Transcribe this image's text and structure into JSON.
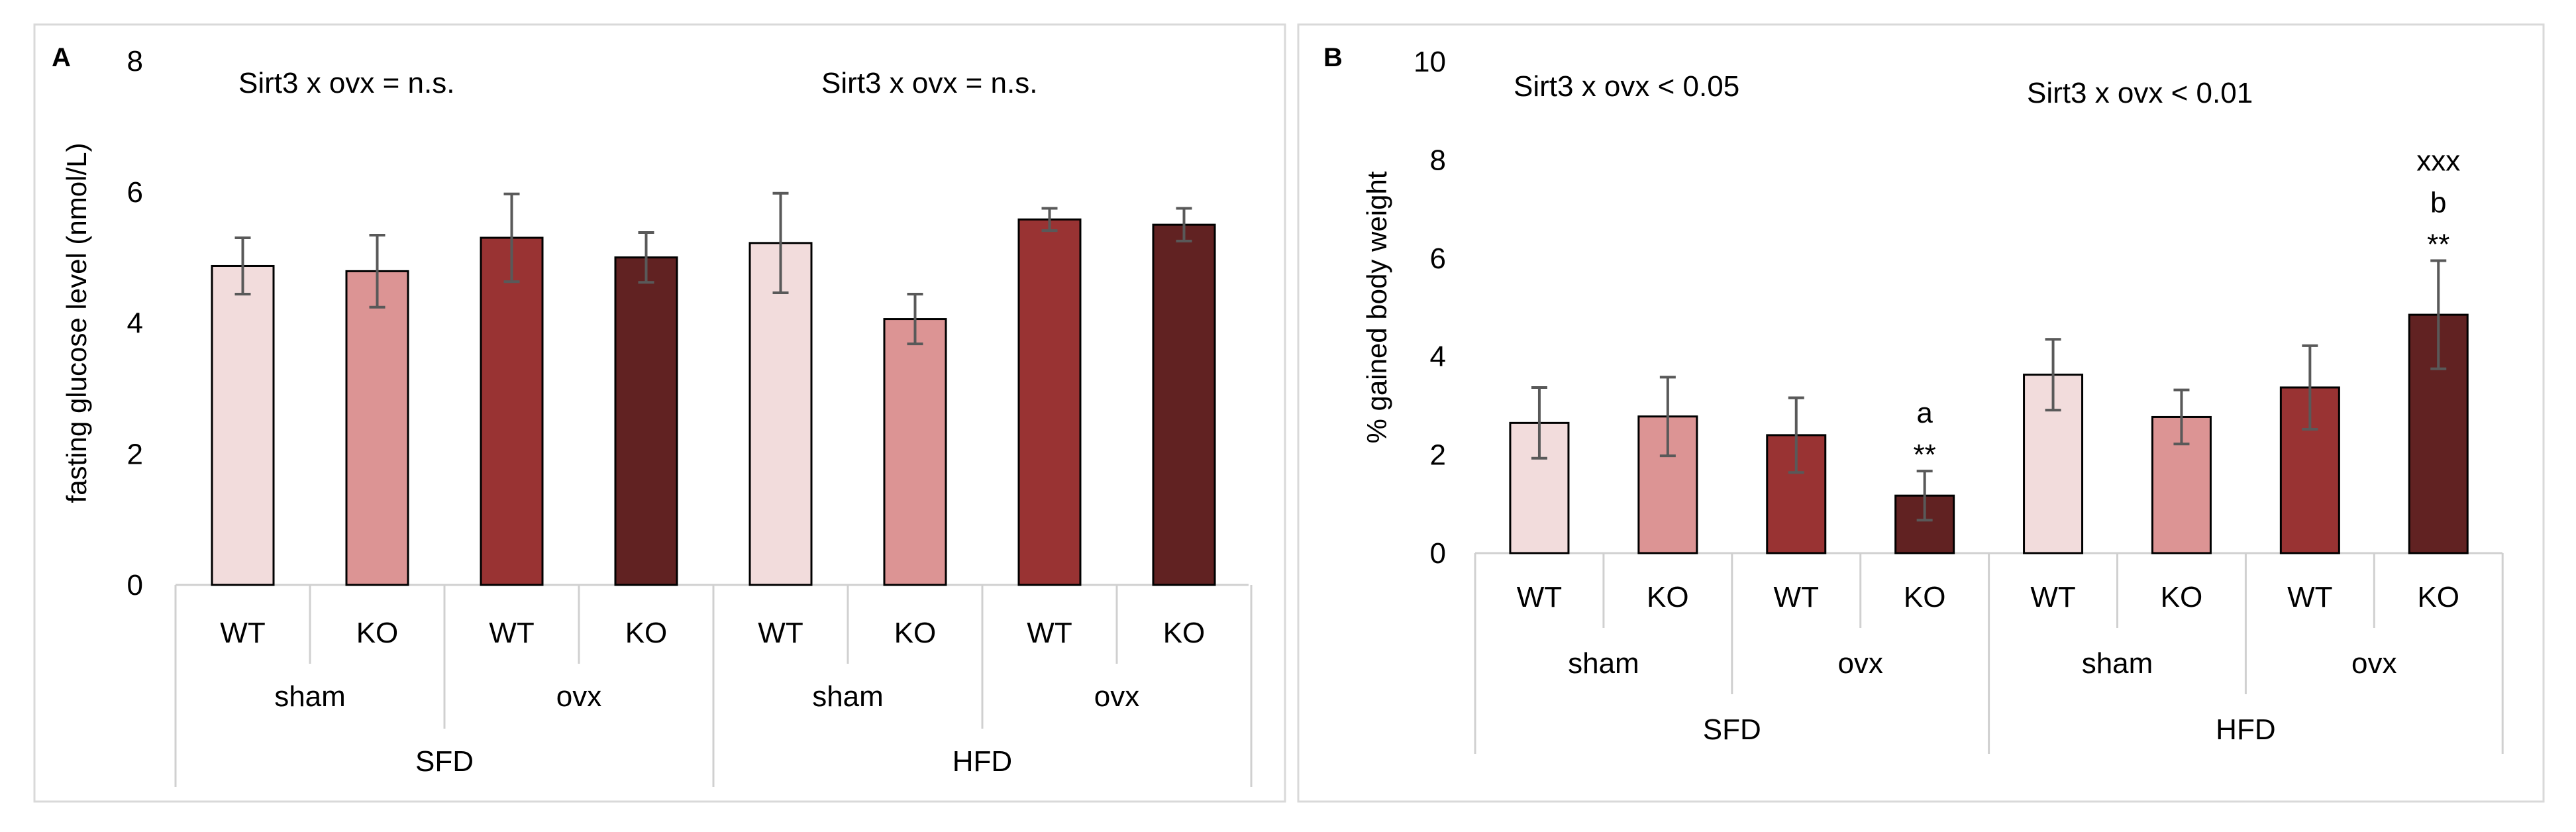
{
  "chart_data": [
    {
      "panel_label": "A",
      "type": "bar",
      "ylabel": "fasting glucose level (nmol/L)",
      "ylim": [
        0,
        8
      ],
      "yticks": [
        0,
        2,
        4,
        6,
        8
      ],
      "grid": false,
      "genotypes": [
        "WT",
        "KO",
        "WT",
        "KO",
        "WT",
        "KO",
        "WT",
        "KO"
      ],
      "surgery_groups": [
        "sham",
        "ovx",
        "sham",
        "ovx"
      ],
      "diet_groups": [
        "SFD",
        "HFD"
      ],
      "values": [
        4.87,
        4.79,
        5.3,
        5.0,
        5.22,
        4.06,
        5.58,
        5.5
      ],
      "errors": [
        0.43,
        0.55,
        0.67,
        0.38,
        0.76,
        0.38,
        0.17,
        0.25
      ],
      "bar_colors": [
        "#f2dcdc",
        "#dc9494",
        "#993333",
        "#612222",
        "#f2dcdc",
        "#dc9494",
        "#993333",
        "#612222"
      ],
      "annotations": [
        "Sirt3 x ovx = n.s.",
        "Sirt3 x ovx = n.s."
      ],
      "bar_labels": [
        [],
        [],
        [],
        [],
        [],
        [],
        [],
        []
      ]
    },
    {
      "panel_label": "B",
      "type": "bar",
      "ylabel": "% gained body weight",
      "ylim": [
        0,
        10
      ],
      "yticks": [
        0,
        2,
        4,
        6,
        8,
        10
      ],
      "grid": false,
      "genotypes": [
        "WT",
        "KO",
        "WT",
        "KO",
        "WT",
        "KO",
        "WT",
        "KO"
      ],
      "surgery_groups": [
        "sham",
        "ovx",
        "sham",
        "ovx"
      ],
      "diet_groups": [
        "SFD",
        "HFD"
      ],
      "values": [
        2.65,
        2.78,
        2.4,
        1.17,
        3.63,
        2.77,
        3.37,
        4.85
      ],
      "errors": [
        0.72,
        0.8,
        0.76,
        0.5,
        0.72,
        0.55,
        0.85,
        1.1
      ],
      "bar_colors": [
        "#f2dcdc",
        "#dc9494",
        "#993333",
        "#612222",
        "#f2dcdc",
        "#dc9494",
        "#993333",
        "#612222"
      ],
      "annotations": [
        "Sirt3 x ovx < 0.05",
        "Sirt3 x ovx < 0.01"
      ],
      "bar_labels": [
        [],
        [],
        [],
        [
          "a",
          "**"
        ],
        [],
        [],
        [],
        [
          "xxx",
          "b",
          "**"
        ]
      ]
    }
  ]
}
